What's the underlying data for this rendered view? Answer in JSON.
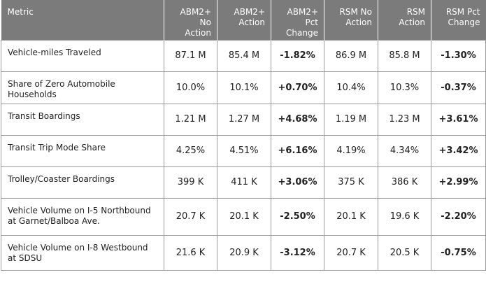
{
  "columns": [
    "Metric",
    "ABM2+\nNo\nAction",
    "ABM2+\nAction",
    "ABM2+\nPct\nChange",
    "RSM No\nAction",
    "RSM\nAction",
    "RSM Pct\nChange"
  ],
  "rows": [
    [
      "Vehicle-miles Traveled",
      "87.1 M",
      "85.4 M",
      "-1.82%",
      "86.9 M",
      "85.8 M",
      "-1.30%"
    ],
    [
      "Share of Zero Automobile\nHouseholds",
      "10.0%",
      "10.1%",
      "+0.70%",
      "10.4%",
      "10.3%",
      "-0.37%"
    ],
    [
      "Transit Boardings",
      "1.21 M",
      "1.27 M",
      "+4.68%",
      "1.19 M",
      "1.23 M",
      "+3.61%"
    ],
    [
      "Transit Trip Mode Share",
      "4.25%",
      "4.51%",
      "+6.16%",
      "4.19%",
      "4.34%",
      "+3.42%"
    ],
    [
      "Trolley/Coaster Boardings",
      "399 K",
      "411 K",
      "+3.06%",
      "375 K",
      "386 K",
      "+2.99%"
    ],
    [
      "Vehicle Volume on I-5 Northbound\nat Garnet/Balboa Ave.",
      "20.7 K",
      "20.1 K",
      "-2.50%",
      "20.1 K",
      "19.6 K",
      "-2.20%"
    ],
    [
      "Vehicle Volume on I-8 Westbound\nat SDSU",
      "21.6 K",
      "20.9 K",
      "-3.12%",
      "20.7 K",
      "20.5 K",
      "-0.75%"
    ]
  ]
}
